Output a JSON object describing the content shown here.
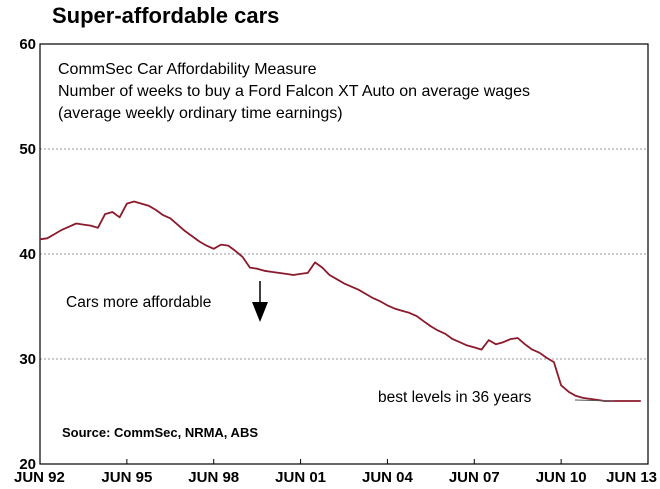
{
  "chart_data": {
    "type": "line",
    "title": "Super-affordable cars",
    "subtitle_lines": [
      "CommSec Car Affordability Measure",
      "Number of weeks to buy a Ford Falcon XT Auto on average wages",
      "(average weekly ordinary time earnings)"
    ],
    "ylim": [
      20,
      60
    ],
    "yticks": [
      20,
      30,
      40,
      50,
      60
    ],
    "grid": true,
    "xlim": [
      1992.5,
      2013.5
    ],
    "xticks": [
      {
        "value": 1992.5,
        "label": "JUN 92"
      },
      {
        "value": 1995.5,
        "label": "JUN 95"
      },
      {
        "value": 1998.5,
        "label": "JUN 98"
      },
      {
        "value": 2001.5,
        "label": "JUN 01"
      },
      {
        "value": 2004.5,
        "label": "JUN 04"
      },
      {
        "value": 2007.5,
        "label": "JUN 07"
      },
      {
        "value": 2010.5,
        "label": "JUN 10"
      },
      {
        "value": 2013.5,
        "label": "JUN 13"
      }
    ],
    "series": [
      {
        "color": "#8b1a2b",
        "x": [
          1992.5,
          1992.75,
          1993.0,
          1993.25,
          1993.5,
          1993.75,
          1994.0,
          1994.25,
          1994.5,
          1994.75,
          1995.0,
          1995.25,
          1995.5,
          1995.75,
          1996.0,
          1996.25,
          1996.5,
          1996.75,
          1997.0,
          1997.25,
          1997.5,
          1997.75,
          1998.0,
          1998.25,
          1998.5,
          1998.75,
          1999.0,
          1999.25,
          1999.5,
          1999.75,
          2000.0,
          2000.25,
          2000.5,
          2000.75,
          2001.0,
          2001.25,
          2001.5,
          2001.75,
          2002.0,
          2002.25,
          2002.5,
          2002.75,
          2003.0,
          2003.25,
          2003.5,
          2003.75,
          2004.0,
          2004.25,
          2004.5,
          2004.75,
          2005.0,
          2005.25,
          2005.5,
          2005.75,
          2006.0,
          2006.25,
          2006.5,
          2006.75,
          2007.0,
          2007.25,
          2007.5,
          2007.75,
          2008.0,
          2008.25,
          2008.5,
          2008.75,
          2009.0,
          2009.25,
          2009.5,
          2009.75,
          2010.0,
          2010.25,
          2010.5,
          2010.75,
          2011.0,
          2011.25,
          2011.5,
          2011.75,
          2012.0,
          2012.25,
          2012.5,
          2012.75,
          2013.0,
          2013.25
        ],
        "values": [
          41.4,
          41.5,
          41.9,
          42.3,
          42.6,
          42.9,
          42.8,
          42.7,
          42.5,
          43.8,
          44.0,
          43.5,
          44.8,
          45.0,
          44.8,
          44.6,
          44.2,
          43.7,
          43.4,
          42.8,
          42.2,
          41.7,
          41.2,
          40.8,
          40.5,
          40.9,
          40.8,
          40.3,
          39.7,
          38.7,
          38.6,
          38.4,
          38.3,
          38.2,
          38.1,
          38.0,
          38.1,
          38.2,
          39.2,
          38.7,
          38.0,
          37.6,
          37.2,
          36.9,
          36.6,
          36.2,
          35.8,
          35.5,
          35.1,
          34.8,
          34.6,
          34.4,
          34.1,
          33.6,
          33.1,
          32.7,
          32.4,
          31.9,
          31.6,
          31.3,
          31.1,
          30.9,
          31.8,
          31.4,
          31.6,
          31.9,
          32.0,
          31.4,
          30.9,
          30.6,
          30.1,
          29.7,
          27.5,
          26.9,
          26.5,
          26.3,
          26.2,
          26.1,
          26.0,
          26.0,
          26.0,
          26.0,
          26.0,
          26.0
        ]
      }
    ],
    "annotations": [
      {
        "text": "Cars more affordable"
      },
      {
        "text": "best levels in 36 years"
      }
    ],
    "source": "Source: CommSec, NRMA, ABS"
  }
}
